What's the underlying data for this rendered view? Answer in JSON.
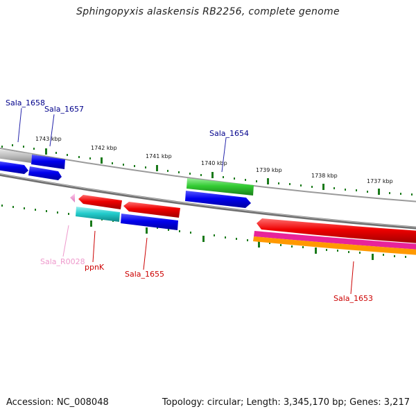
{
  "title": "Sphingopyxis alaskensis RB2256, complete genome",
  "footer": {
    "accession": "Accession: NC_008048",
    "topology": "Topology: circular; Length: 3,345,170 bp; Genes: 3,217"
  },
  "kbp_labels": [
    "1743 kbp",
    "1742 kbp",
    "1741 kbp",
    "1740 kbp",
    "1739 kbp",
    "1738 kbp",
    "1737 kbp"
  ],
  "gene_labels": {
    "sala_1658": "Sala_1658",
    "sala_1657": "Sala_1657",
    "sala_1654": "Sala_1654",
    "sala_r0028": "Sala_R0028",
    "ppnk": "ppnK",
    "sala_1655": "Sala_1655",
    "sala_1653": "Sala_1653"
  },
  "colors": {
    "blue": "#0000ee",
    "red": "#ee0000",
    "green": "#33cc33",
    "cyan": "#22cccc",
    "pink": "#ee88cc",
    "magenta": "#ee2299",
    "orange": "#ff9900",
    "gray": "#b8b8b8",
    "tick": "#1a7a1a",
    "label_blue": "#00008b",
    "label_red": "#cc0000",
    "label_pink": "#ee99cc"
  }
}
